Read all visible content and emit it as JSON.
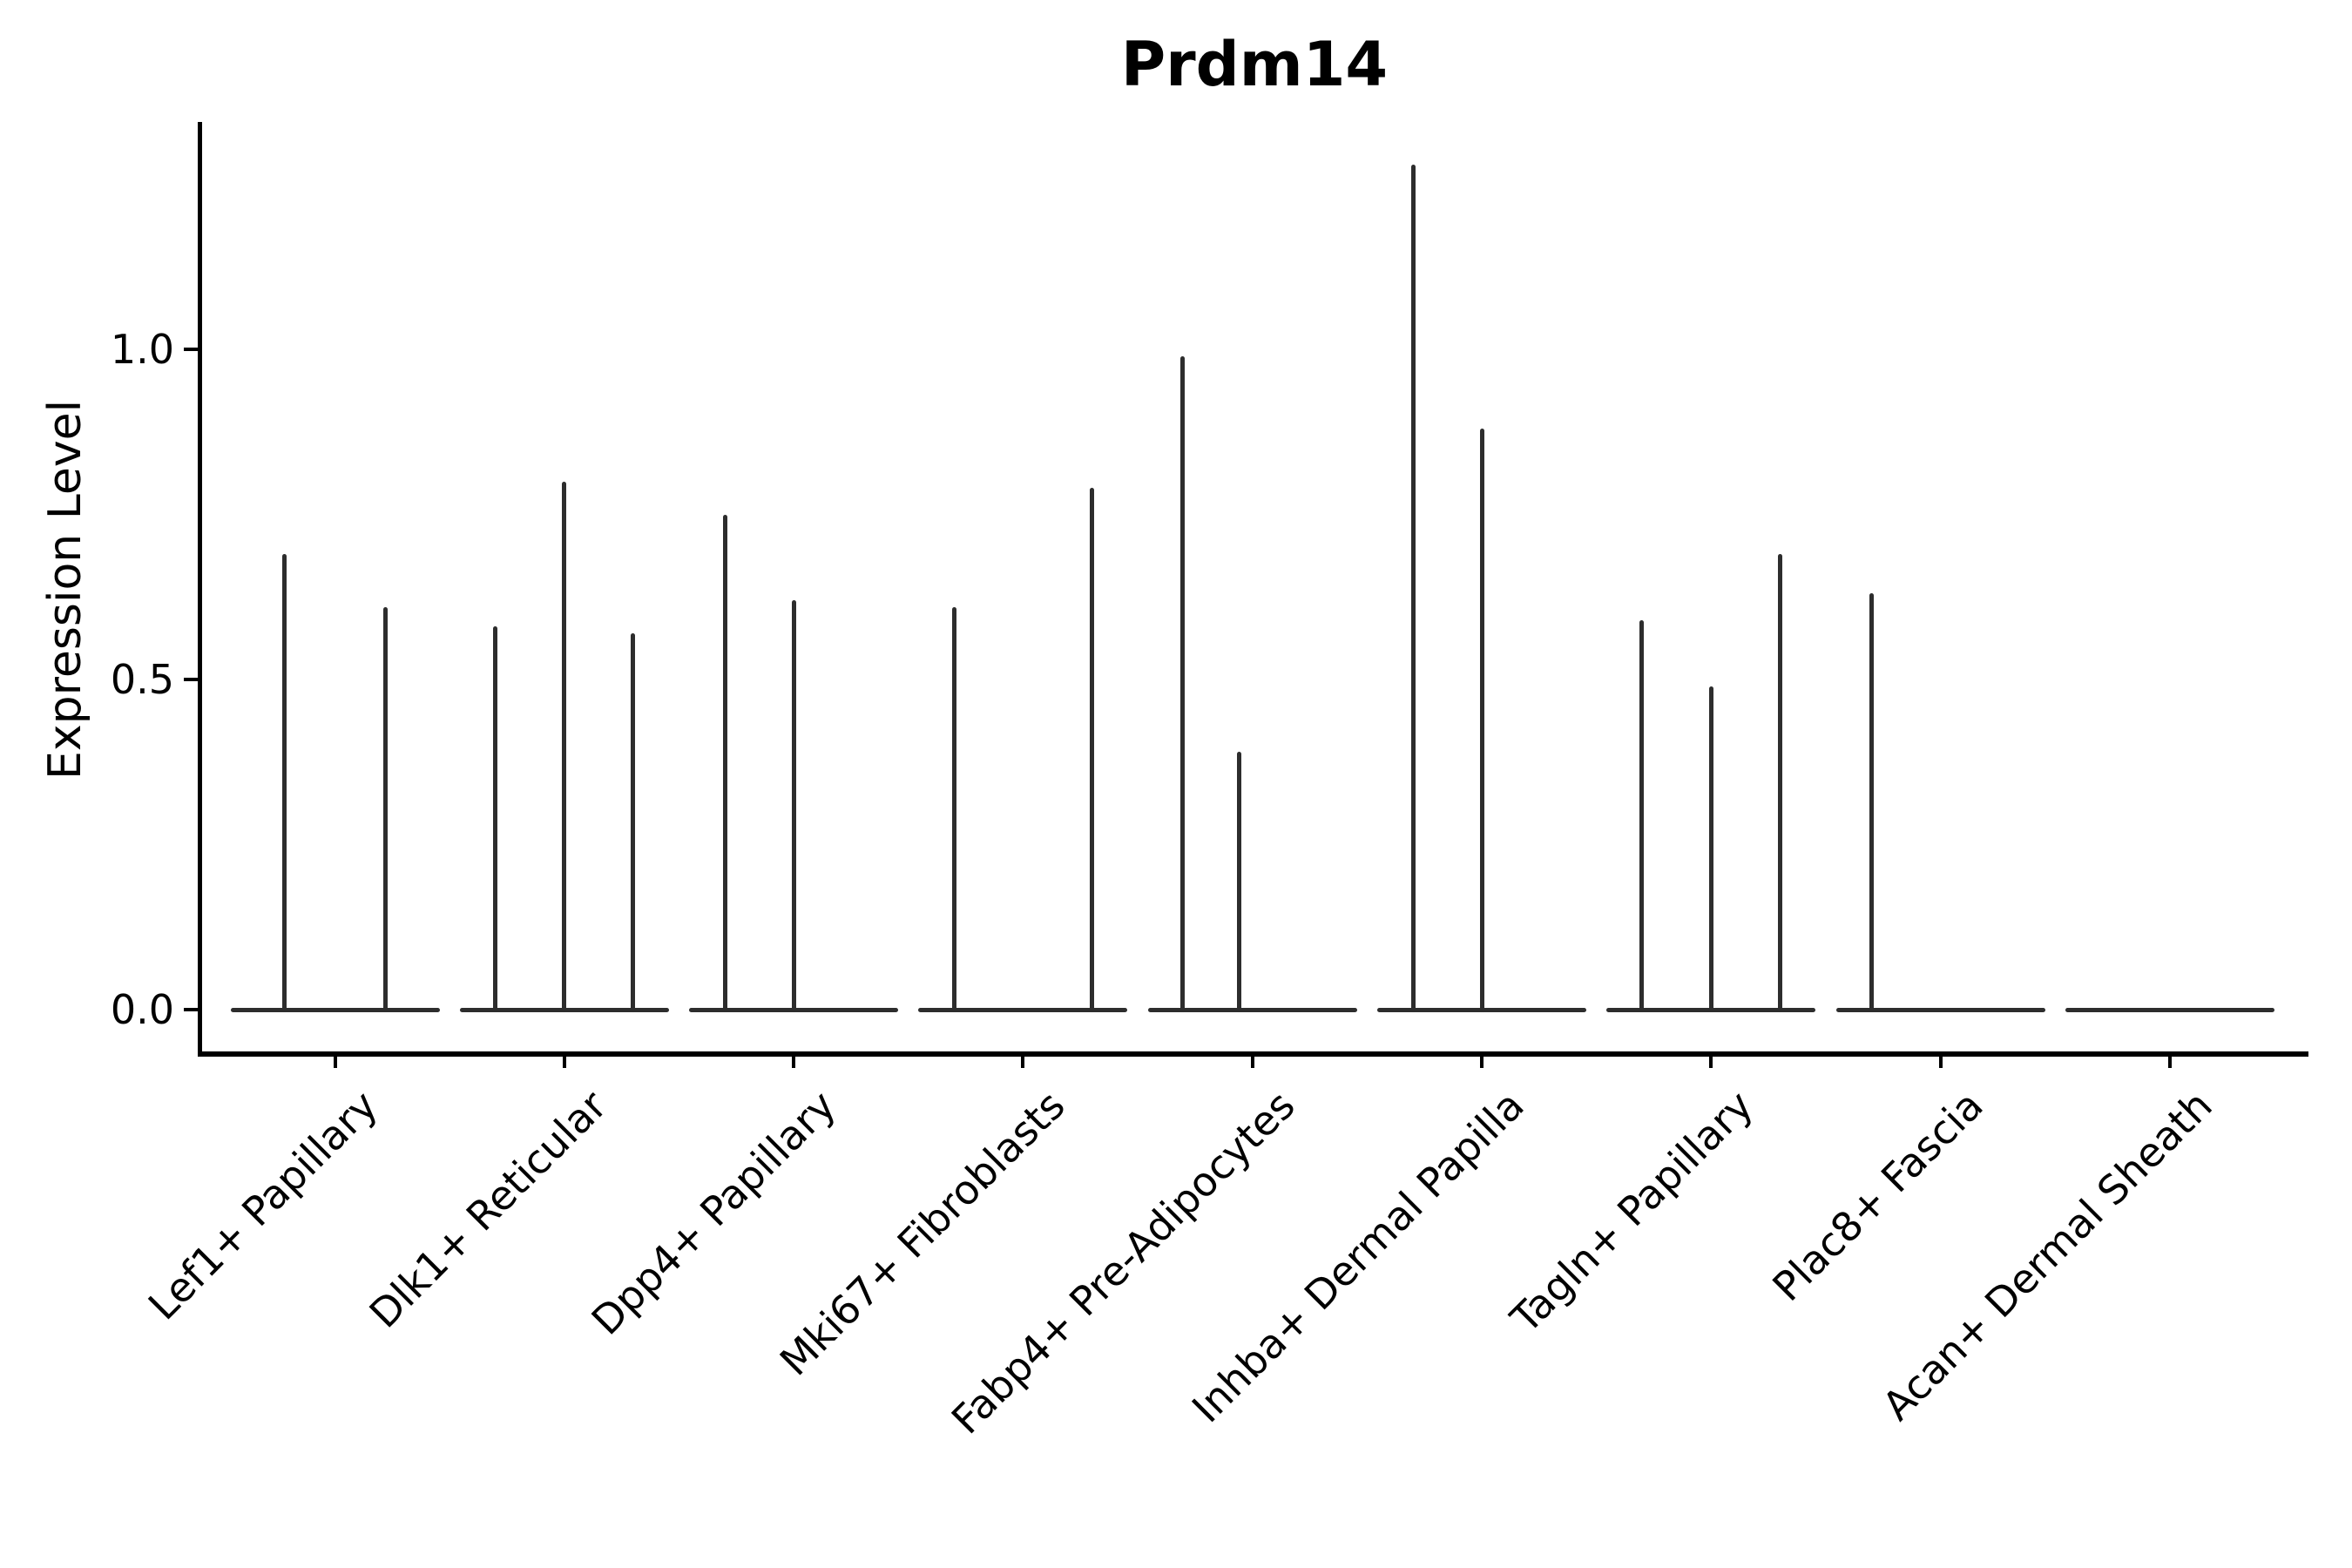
{
  "figure": {
    "title": "Prdm14",
    "ylabel": "Expression Level",
    "background": "#ffffff",
    "text_color": "#000000",
    "violin_color": "#2d2d2d",
    "spine_color": "#000000"
  },
  "chart_data": {
    "type": "violin",
    "title": "Prdm14",
    "xlabel": "",
    "ylabel": "Expression Level",
    "ylim": [
      -0.07,
      1.34
    ],
    "ytick_values": [
      0.0,
      0.5,
      1.0
    ],
    "ytick_labels": [
      "0.0",
      "0.5",
      "1.0"
    ],
    "grid": false,
    "legend": "none",
    "x_label_rotation_deg": 45,
    "bulk_at_value": 0.0,
    "categories": [
      "Lef1+ Papillary",
      "Dlk1+ Reticular",
      "Dpp4+ Papillary",
      "Mki67+ Fibroblasts",
      "Fabp4+ Pre-Adipocytes",
      "Inhba+ Dermal Papilla",
      "Tagln+ Papillary",
      "Plac8+ Fascia",
      "Acan+ Dermal Sheath"
    ],
    "series": [
      {
        "category": "Lef1+ Papillary",
        "baseline_value": 0.0,
        "spikes": [
          {
            "offset": -0.222,
            "value": 0.69
          },
          {
            "offset": 0.222,
            "value": 0.61
          }
        ]
      },
      {
        "category": "Dlk1+ Reticular",
        "baseline_value": 0.0,
        "spikes": [
          {
            "offset": -0.3,
            "value": 0.58
          },
          {
            "offset": 0.0,
            "value": 0.8
          },
          {
            "offset": 0.3,
            "value": 0.57
          }
        ]
      },
      {
        "category": "Dpp4+ Papillary",
        "baseline_value": 0.0,
        "spikes": [
          {
            "offset": -0.3,
            "value": 0.75
          },
          {
            "offset": 0.0,
            "value": 0.62
          }
        ]
      },
      {
        "category": "Mki67+ Fibroblasts",
        "baseline_value": 0.0,
        "spikes": [
          {
            "offset": -0.3,
            "value": 0.61
          },
          {
            "offset": 0.3,
            "value": 0.79
          }
        ]
      },
      {
        "category": "Fabp4+ Pre-Adipocytes",
        "baseline_value": 0.0,
        "spikes": [
          {
            "offset": -0.303,
            "value": 0.99
          },
          {
            "offset": -0.056,
            "value": 0.39
          }
        ]
      },
      {
        "category": "Inhba+ Dermal Papilla",
        "baseline_value": 0.0,
        "spikes": [
          {
            "offset": -0.3,
            "value": 1.28
          },
          {
            "offset": 0.0,
            "value": 0.88
          }
        ]
      },
      {
        "category": "Tagln+ Papillary",
        "baseline_value": 0.0,
        "spikes": [
          {
            "offset": -0.304,
            "value": 0.59
          },
          {
            "offset": 0.0,
            "value": 0.49
          },
          {
            "offset": 0.3,
            "value": 0.69
          }
        ]
      },
      {
        "category": "Plac8+ Fascia",
        "baseline_value": 0.0,
        "spikes": [
          {
            "offset": -0.3,
            "value": 0.63
          }
        ]
      },
      {
        "category": "Acan+ Dermal Sheath",
        "baseline_value": 0.0,
        "spikes": []
      }
    ]
  }
}
